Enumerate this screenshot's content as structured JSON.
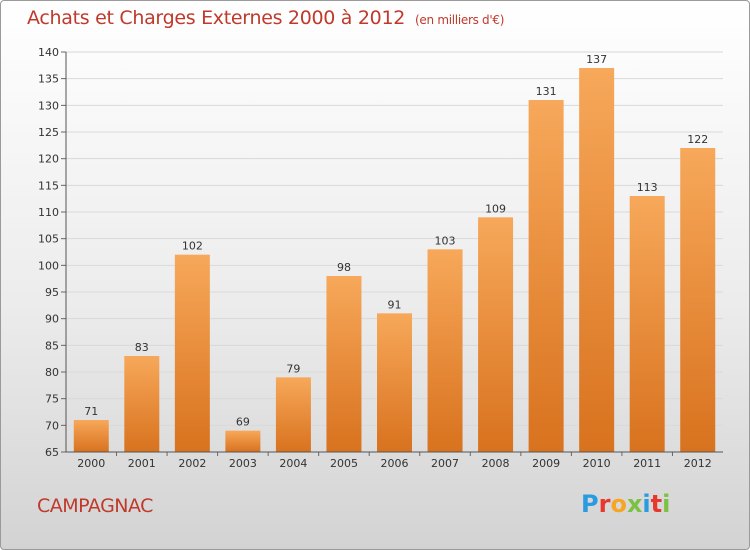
{
  "header": {
    "title": "Achats et Charges Externes 2000 à 2012",
    "unit": "(en milliers d'€)"
  },
  "footer": {
    "city": "CAMPAGNAC",
    "logo_letters": [
      "P",
      "r",
      "o",
      "x",
      "i",
      "t",
      "i"
    ],
    "logo_colors": [
      "#2a9be0",
      "#e8372c",
      "#f6a623",
      "#7cc242",
      "#2a9be0",
      "#e8372c",
      "#7cc242"
    ]
  },
  "chart_data": {
    "type": "bar",
    "title": "Achats et Charges Externes 2000 à 2012",
    "subtitle": "(en milliers d'€)",
    "categories": [
      "2000",
      "2001",
      "2002",
      "2003",
      "2004",
      "2005",
      "2006",
      "2007",
      "2008",
      "2009",
      "2010",
      "2011",
      "2012"
    ],
    "values": [
      71,
      83,
      102,
      69,
      79,
      98,
      91,
      103,
      109,
      131,
      137,
      113,
      122
    ],
    "data_labels": [
      "71",
      "83",
      "102",
      "69",
      "79",
      "98",
      "91",
      "103",
      "109",
      "131",
      "137",
      "113",
      "122"
    ],
    "ylim": [
      65,
      140
    ],
    "yticks": [
      "65",
      "70",
      "75",
      "80",
      "85",
      "90",
      "95",
      "100",
      "105",
      "110",
      "115",
      "120",
      "125",
      "130",
      "135",
      "140"
    ],
    "grid": true,
    "legend": "none",
    "bar_color_top": "#f7a85a",
    "bar_color_bottom": "#d8721e"
  }
}
